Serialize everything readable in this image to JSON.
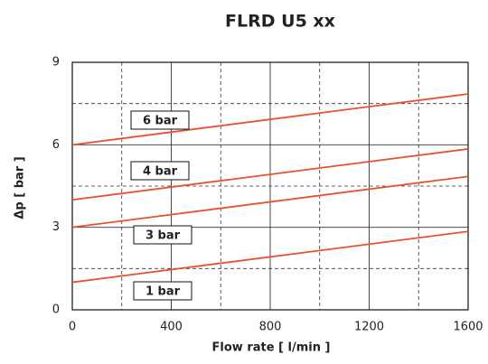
{
  "chart_data": {
    "type": "line",
    "title": "FLRD U5 xx",
    "xlabel": "Flow rate [ l/min ]",
    "ylabel": "Δp [ bar ]",
    "x": [
      0,
      1600
    ],
    "series": [
      {
        "name": "6 bar",
        "color": "#e8502e",
        "values": [
          6,
          7.85
        ]
      },
      {
        "name": "4 bar",
        "color": "#e8502e",
        "values": [
          4,
          5.85
        ]
      },
      {
        "name": "3 bar",
        "color": "#e8502e",
        "values": [
          3,
          4.85
        ]
      },
      {
        "name": "1 bar",
        "color": "#e8502e",
        "values": [
          1,
          2.85
        ]
      }
    ],
    "xlim": [
      0,
      1600
    ],
    "xticks": [
      0,
      400,
      800,
      1200,
      1600
    ],
    "xminor": [
      200,
      600,
      1000,
      1400
    ],
    "ylim": [
      0,
      9
    ],
    "yticks": [
      0,
      3,
      6,
      9
    ],
    "yminor": [
      1.5,
      4.5,
      7.5
    ],
    "grid": true
  }
}
